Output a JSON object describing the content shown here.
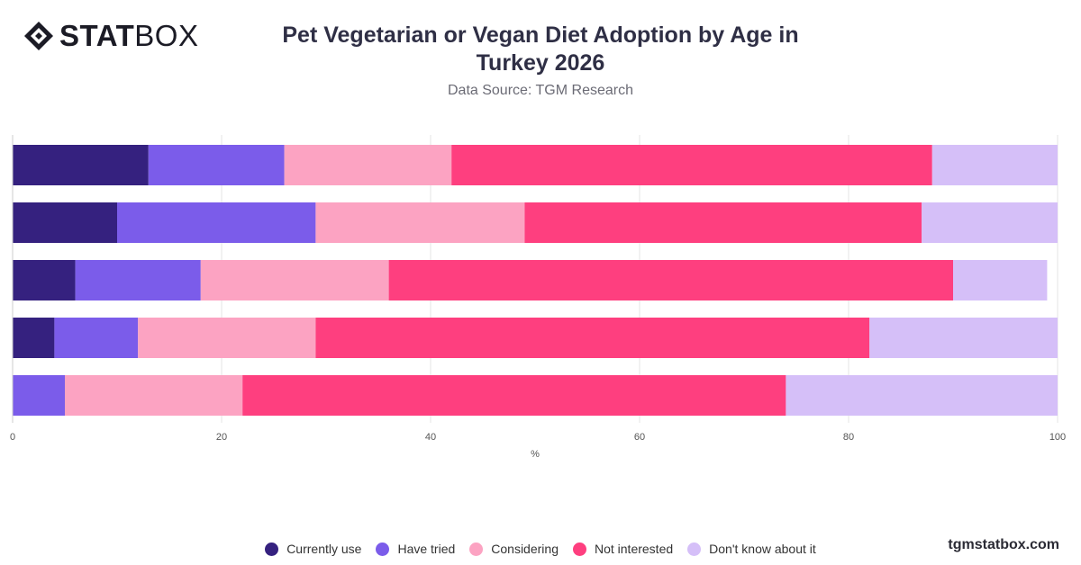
{
  "brand": {
    "logo_bold": "STAT",
    "logo_light": "BOX",
    "footer": "tgmstatbox.com"
  },
  "header": {
    "title_line1": "Pet Vegetarian or Vegan Diet Adoption by Age in",
    "title_line2": "Turkey 2026",
    "subtitle": "Data Source: TGM Research"
  },
  "chart_data": {
    "type": "bar",
    "orientation": "horizontal",
    "stacked": true,
    "title": "Pet Vegetarian or Vegan Diet Adoption by Age in Turkey 2026",
    "subtitle": "Data Source: TGM Research",
    "xlabel": "%",
    "ylabel": "",
    "xlim": [
      0,
      100
    ],
    "xticks": [
      0,
      20,
      40,
      60,
      80,
      100
    ],
    "grid": true,
    "legend_position": "bottom",
    "categories": [
      "",
      "",
      "",
      "",
      ""
    ],
    "series": [
      {
        "name": "Currently use",
        "color": "#35217f",
        "values": [
          13,
          10,
          6,
          4,
          0
        ]
      },
      {
        "name": "Have tried",
        "color": "#7b5cea",
        "values": [
          13,
          19,
          12,
          8,
          5
        ]
      },
      {
        "name": "Considering",
        "color": "#fca3c2",
        "values": [
          16,
          20,
          18,
          17,
          17
        ]
      },
      {
        "name": "Not interested",
        "color": "#fe3f7f",
        "values": [
          46,
          38,
          54,
          53,
          52
        ]
      },
      {
        "name": "Don't know about it",
        "color": "#d5bff8",
        "values": [
          12,
          13,
          9,
          18,
          26
        ]
      }
    ]
  }
}
